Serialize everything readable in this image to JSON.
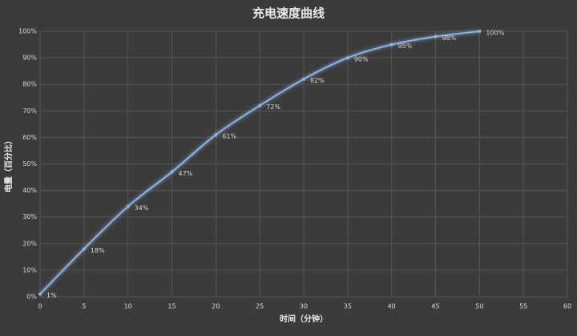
{
  "chart_data": {
    "type": "line",
    "title": "充电速度曲线",
    "x_label": "时间（分钟）",
    "y_label": "电量（百分比）",
    "x": [
      0,
      5,
      10,
      15,
      20,
      25,
      30,
      35,
      40,
      45,
      50
    ],
    "values": [
      1,
      18,
      34,
      47,
      61,
      72,
      82,
      90,
      95,
      98,
      100
    ],
    "value_labels": [
      "1%",
      "18%",
      "34%",
      "47%",
      "61%",
      "72%",
      "82%",
      "90%",
      "95%",
      "98%",
      "100%"
    ],
    "color": "#8db4e6",
    "xlim": [
      0,
      60
    ],
    "xticks": [
      0,
      5,
      10,
      15,
      20,
      25,
      30,
      35,
      40,
      45,
      50,
      55,
      60
    ],
    "ylim": [
      0,
      100
    ],
    "yticks": [
      {
        "value": 0,
        "label": "0%"
      },
      {
        "value": 10,
        "label": "10%"
      },
      {
        "value": 20,
        "label": "20%"
      },
      {
        "value": 30,
        "label": "30%"
      },
      {
        "value": 40,
        "label": "40%"
      },
      {
        "value": 50,
        "label": "50%"
      },
      {
        "value": 60,
        "label": "60%"
      },
      {
        "value": 70,
        "label": "70%"
      },
      {
        "value": 80,
        "label": "80%"
      },
      {
        "value": 90,
        "label": "90%"
      },
      {
        "value": 100,
        "label": "100%"
      }
    ],
    "grid": true
  }
}
